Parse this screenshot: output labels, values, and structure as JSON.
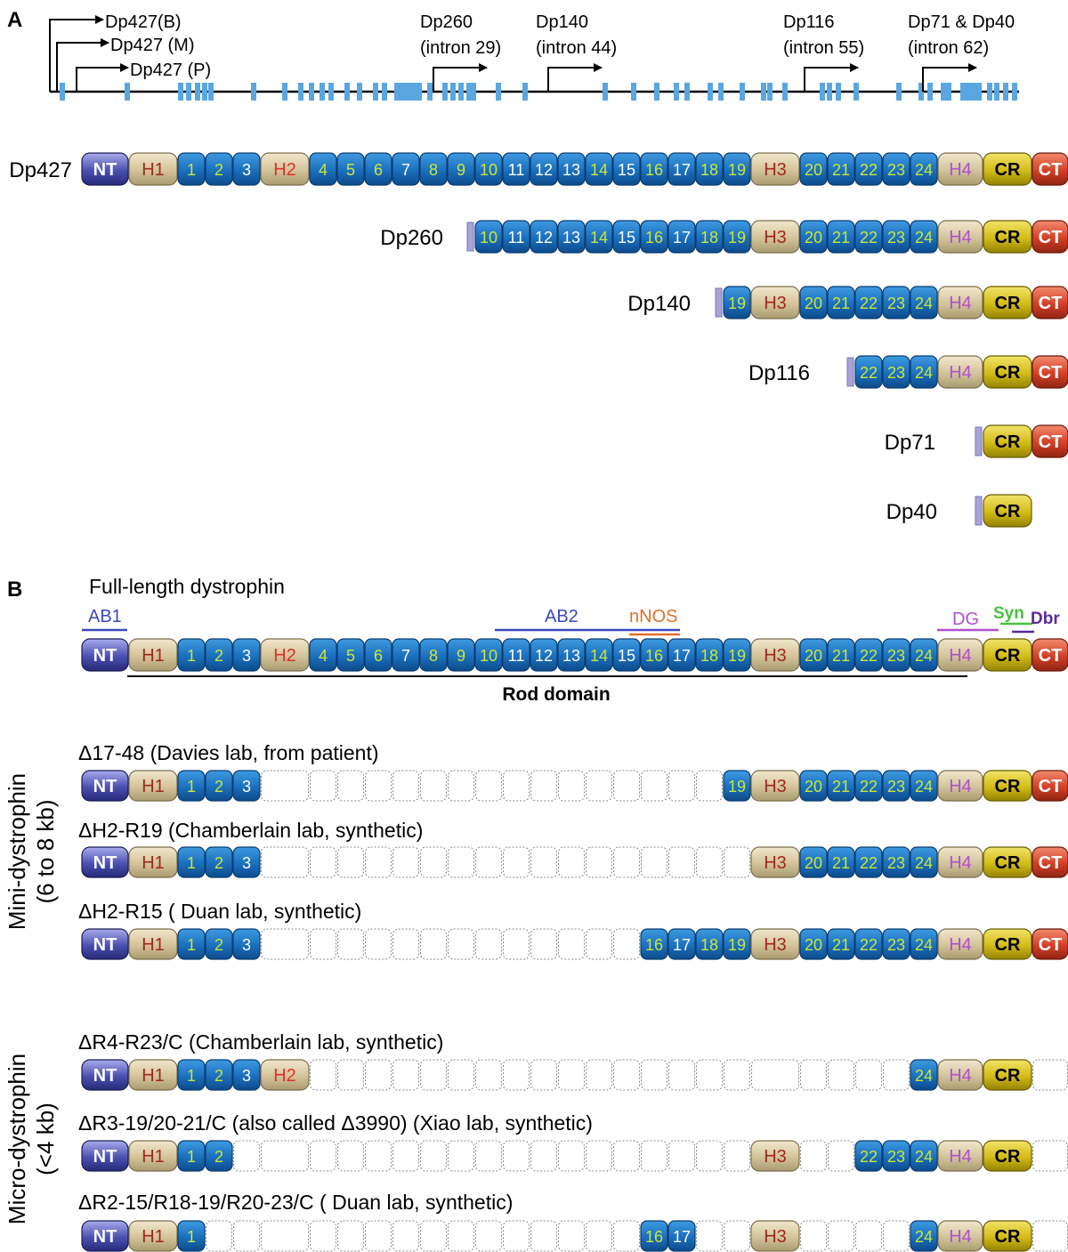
{
  "panel_a": {
    "label": "A",
    "promoters": [
      {
        "id": "B",
        "label": "Dp427(B)"
      },
      {
        "id": "M",
        "label": "Dp427 (M)"
      },
      {
        "id": "P",
        "label": "Dp427 (P)"
      },
      {
        "id": "260",
        "line1": "Dp260",
        "line2": "(intron 29)"
      },
      {
        "id": "140",
        "line1": "Dp140",
        "line2": "(intron 44)"
      },
      {
        "id": "116",
        "line1": "Dp116",
        "line2": "(intron 55)"
      },
      {
        "id": "71",
        "line1": "Dp71 & Dp40",
        "line2": "(intron 62)"
      }
    ],
    "isoforms": [
      {
        "name": "Dp427",
        "domains": [
          "NT",
          "H1",
          "1",
          "2",
          "3",
          "H2",
          "4",
          "5",
          "6",
          "7",
          "8",
          "9",
          "10",
          "11",
          "12",
          "13",
          "14",
          "15",
          "16",
          "17",
          "18",
          "19",
          "H3",
          "20",
          "21",
          "22",
          "23",
          "24",
          "H4",
          "CR",
          "CT"
        ]
      },
      {
        "name": "Dp260",
        "domains": [
          "10",
          "11",
          "12",
          "13",
          "14",
          "15",
          "16",
          "17",
          "18",
          "19",
          "H3",
          "20",
          "21",
          "22",
          "23",
          "24",
          "H4",
          "CR",
          "CT"
        ]
      },
      {
        "name": "Dp140",
        "domains": [
          "19",
          "H3",
          "20",
          "21",
          "22",
          "23",
          "24",
          "H4",
          "CR",
          "CT"
        ]
      },
      {
        "name": "Dp116",
        "domains": [
          "22",
          "23",
          "24",
          "H4",
          "CR",
          "CT"
        ]
      },
      {
        "name": "Dp71",
        "domains": [
          "CR",
          "CT"
        ]
      },
      {
        "name": "Dp40",
        "domains": [
          "CR"
        ]
      }
    ]
  },
  "panel_b": {
    "label": "B",
    "title": "Full-length dystrophin",
    "annotations": {
      "AB1": "AB1",
      "AB2": "AB2",
      "nNOS": "nNOS",
      "DG": "DG",
      "Syn": "Syn",
      "Dbr": "Dbr"
    },
    "rod_label": "Rod domain",
    "side_mini_1": "Mini-dystrophin",
    "side_mini_2": "(6 to 8 kb)",
    "side_micro_1": "Micro-dystrophin",
    "side_micro_2": "(<4 kb)",
    "constructs": [
      {
        "label": "Δ17-48 (Davies lab, from patient)"
      },
      {
        "label": "ΔH2-R19 (Chamberlain lab, synthetic)"
      },
      {
        "label": "ΔH2-R15 ( Duan lab, synthetic)"
      },
      {
        "label": "ΔR4-R23/C (Chamberlain lab, synthetic)"
      },
      {
        "label": "ΔR3-19/20-21/C  (also called Δ3990) (Xiao lab, synthetic)"
      },
      {
        "label": "ΔR2-15/R18-19/R20-23/C ( Duan lab, synthetic)"
      }
    ]
  },
  "colors": {
    "nt": "#4a4fb0",
    "hinge": "#d6c7a0",
    "hinge_text": "#a0291f",
    "h2_text": "#e0302a",
    "h4_text": "#b04fd0",
    "repeat": "#1f78c8",
    "repeat_text_y": "#c8e63a",
    "repeat_text_w": "#ffffff",
    "cr": "#d9c21a",
    "ct": "#d9402a",
    "exon": "#5aa6e0"
  }
}
